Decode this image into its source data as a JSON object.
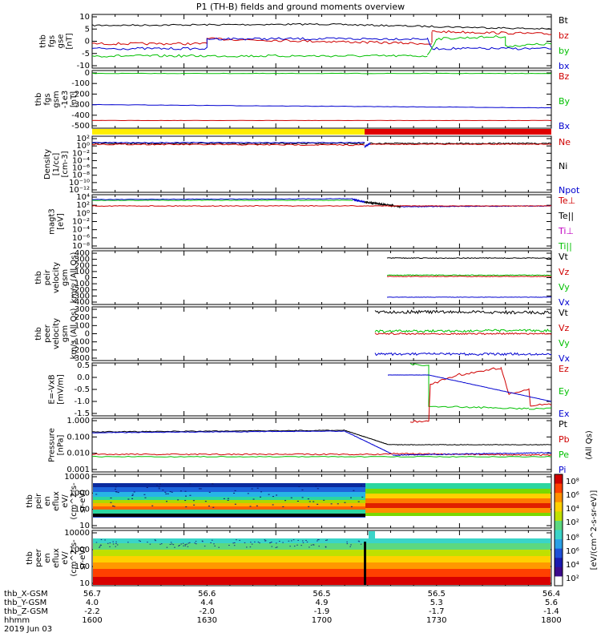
{
  "title": "P1 (TH-B) fields and ground moments overview",
  "panels": [
    {
      "id": "fgs-gse",
      "ylabel": [
        "thb",
        "fgs",
        "gse",
        "[nT]"
      ],
      "yticks": [
        "10",
        "5",
        "0",
        "-5",
        "-10"
      ],
      "legend": [
        {
          "t": "Bt",
          "c": "#000000"
        },
        {
          "t": "bz",
          "c": "#d00000"
        },
        {
          "t": "by",
          "c": "#00c000"
        },
        {
          "t": "bx",
          "c": "#0000d0"
        }
      ]
    },
    {
      "id": "fgs-gsm",
      "ylabel": [
        "thb",
        "fgs",
        "gsm",
        "-1e3",
        "[nT]"
      ],
      "yticks": [
        "0",
        "-100",
        "-200",
        "-300",
        "-400",
        "-500"
      ],
      "legend": [
        {
          "t": "Bz",
          "c": "#d00000"
        },
        {
          "t": "By",
          "c": "#00c000"
        },
        {
          "t": "Bx",
          "c": "#0000d0"
        }
      ]
    },
    {
      "id": "density",
      "ylabel": [
        "Density",
        "[1/cc]",
        "[cm-3]"
      ],
      "yticks": [
        "10²",
        "10⁰",
        "10⁻²",
        "10⁻⁴",
        "10⁻⁶",
        "10⁻⁸",
        "10⁻¹⁰",
        "10⁻¹²"
      ],
      "legend": [
        {
          "t": "Ne",
          "c": "#d00000"
        },
        {
          "t": "Ni",
          "c": "#000000"
        },
        {
          "t": "Npot",
          "c": "#0000d0"
        }
      ]
    },
    {
      "id": "temp",
      "ylabel": [
        "magt3",
        "[eV]"
      ],
      "yticks": [
        "10⁴",
        "10²",
        "10⁰",
        "10⁻²",
        "10⁻⁴",
        "10⁻⁶",
        "10⁻⁸"
      ],
      "legend": [
        {
          "t": "Te⊥",
          "c": "#d00000"
        },
        {
          "t": "Te||",
          "c": "#000000"
        },
        {
          "t": "Ti⊥",
          "c": "#c000c0"
        },
        {
          "t": "Ti||",
          "c": "#00c000"
        }
      ]
    },
    {
      "id": "peir-vel",
      "ylabel": [
        "thb",
        "peir",
        "velocity",
        "gsm",
        "km/s (All Qs)"
      ],
      "yticks": [
        "400",
        "300",
        "200",
        "100",
        "0",
        "-100",
        "-200",
        "-300",
        "-400"
      ],
      "legend": [
        {
          "t": "Vt",
          "c": "#000000"
        },
        {
          "t": "Vz",
          "c": "#d00000"
        },
        {
          "t": "Vy",
          "c": "#00c000"
        },
        {
          "t": "Vx",
          "c": "#0000d0"
        }
      ]
    },
    {
      "id": "peer-vel",
      "ylabel": [
        "thb",
        "peer",
        "velocity",
        "gsm",
        "km/s (All Qs)"
      ],
      "yticks": [
        "300",
        "200",
        "100",
        "0",
        "-100",
        "-200",
        "-300"
      ],
      "legend": [
        {
          "t": "Vt",
          "c": "#000000"
        },
        {
          "t": "Vz",
          "c": "#d00000"
        },
        {
          "t": "Vy",
          "c": "#00c000"
        },
        {
          "t": "Vx",
          "c": "#0000d0"
        }
      ]
    },
    {
      "id": "efield",
      "ylabel": [
        "E=-VxB",
        "[mV/m]"
      ],
      "yticks": [
        "0.5",
        "0.0",
        "-0.5",
        "-1.0",
        "-1.5"
      ],
      "legend": [
        {
          "t": "Ez",
          "c": "#d00000"
        },
        {
          "t": "Ey",
          "c": "#00c000"
        },
        {
          "t": "Ex",
          "c": "#0000d0"
        }
      ]
    },
    {
      "id": "pressure",
      "ylabel": [
        "Pressure",
        "[nPa]"
      ],
      "yticks": [
        "1.000",
        "0.100",
        "0.010",
        "0.001"
      ],
      "legend": [
        {
          "t": "Pt",
          "c": "#000000"
        },
        {
          "t": "Pb",
          "c": "#d00000"
        },
        {
          "t": "Pe",
          "c": "#00c000"
        },
        {
          "t": "Pi",
          "c": "#0000d0"
        }
      ],
      "extra": "(All Qs)"
    },
    {
      "id": "peir-spec",
      "ylabel": [
        "thb",
        "peir",
        "en",
        "eflux",
        "eV/",
        "(cm^2-s-",
        "sr-eV)"
      ],
      "yticks": [
        "10000",
        "1000",
        "100",
        "10"
      ]
    },
    {
      "id": "peer-spec",
      "ylabel": [
        "thb",
        "peer",
        "en",
        "eflux",
        "eV/",
        "(cm^2-s-",
        "sr-eV)"
      ],
      "yticks": [
        "10000",
        "1000",
        "100",
        "10"
      ]
    }
  ],
  "colorbar": {
    "ticks": [
      "10⁸",
      "10⁶",
      "10⁴",
      "10²"
    ],
    "label": "[eV/(cm^2-s-sr-eV)]"
  },
  "xaxis": {
    "rows": [
      {
        "label": "thb_X-GSM",
        "vals": [
          "56.7",
          "56.6",
          "56.5",
          "56.5",
          "56.4"
        ]
      },
      {
        "label": "thb_Y-GSM",
        "vals": [
          "4.0",
          "4.4",
          "4.9",
          "5.3",
          "5.6"
        ]
      },
      {
        "label": "thb_Z-GSM",
        "vals": [
          "-2.2",
          "-2.0",
          "-1.9",
          "-1.7",
          "-1.4"
        ]
      },
      {
        "label": "hhmm",
        "vals": [
          "1600",
          "1630",
          "1700",
          "1730",
          "1800"
        ]
      }
    ],
    "date": "2019 Jun 03"
  },
  "chart_data": {
    "type": "line",
    "title": "P1 (TH-B) fields and ground moments overview",
    "x": [
      "1600",
      "1630",
      "1700",
      "1730",
      "1800"
    ],
    "series": [
      {
        "name": "Bt",
        "values": [
          6,
          6,
          6,
          5,
          4
        ]
      },
      {
        "name": "bz",
        "values": [
          1,
          -1,
          -1,
          3,
          4
        ]
      },
      {
        "name": "by",
        "values": [
          -6,
          -6,
          -6,
          1,
          -2
        ]
      },
      {
        "name": "bx",
        "values": [
          -3,
          0,
          1,
          -3,
          -3
        ]
      }
    ],
    "ylabel": "thb fgs gse [nT]",
    "ylim": [
      -10,
      10
    ]
  }
}
